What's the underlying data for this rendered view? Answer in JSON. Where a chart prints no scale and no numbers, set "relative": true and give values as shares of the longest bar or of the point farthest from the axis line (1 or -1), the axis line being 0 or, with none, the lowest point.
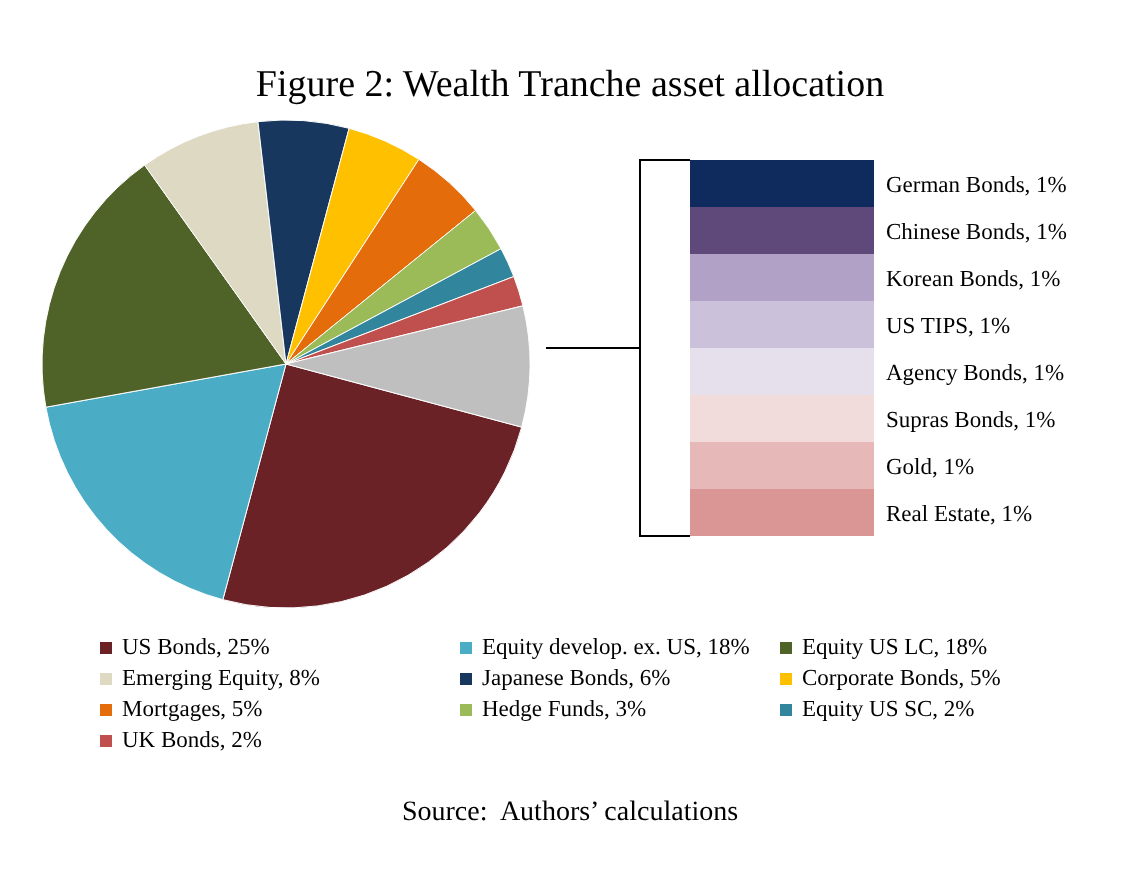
{
  "chart_data": [
    {
      "type": "pie",
      "title": "Figure 2: Wealth Tranche asset allocation",
      "annotations": [
        "Source:  Authors’ calculations"
      ],
      "legend": "bottom",
      "categories": [
        "US Bonds, 25%",
        "Equity develop. ex. US, 18%",
        "Equity US LC, 18%",
        "Emerging Equity, 8%",
        "Japanese Bonds, 6%",
        "Corporate Bonds, 5%",
        "Mortgages, 5%",
        "Hedge Funds, 3%",
        "Equity US SC, 2%",
        "UK Bonds, 2%",
        null
      ],
      "values": [
        25,
        18,
        18,
        8,
        6,
        5,
        5,
        3,
        2,
        2,
        8
      ],
      "colors": [
        "#6b2226",
        "#4bacc6",
        "#4f6228",
        "#ddd9c3",
        "#17375e",
        "#ffc000",
        "#e46c0a",
        "#9bbb59",
        "#31859c",
        "#c0504d",
        "#bfbfbf"
      ]
    },
    {
      "type": "bar",
      "orientation": "horizontal",
      "relative": true,
      "categories": [
        "German Bonds, 1%",
        "Chinese Bonds, 1%",
        "Korean Bonds, 1%",
        "US TIPS, 1%",
        "Agency Bonds, 1%",
        "Supras Bonds, 1%",
        "Gold, 1%",
        "Real Estate, 1%"
      ],
      "values": [
        1,
        1,
        1,
        1,
        1,
        1,
        1,
        1
      ],
      "colors": [
        "#0f2a5c",
        "#5f497a",
        "#b2a1c7",
        "#ccc1da",
        "#e5e0ec",
        "#f2dcdb",
        "#e6b9b8",
        "#d99694"
      ]
    }
  ]
}
